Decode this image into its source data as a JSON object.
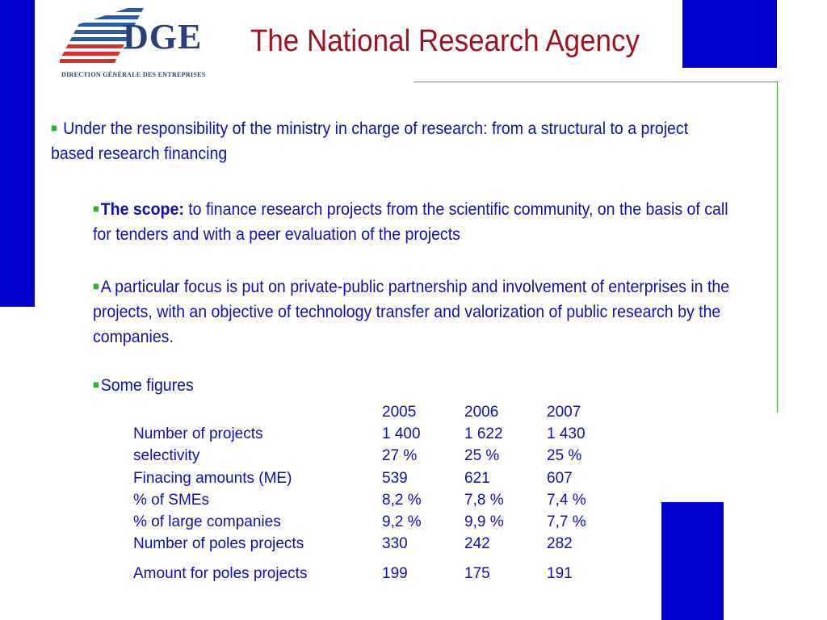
{
  "logo": {
    "name": "DGE",
    "subtitle": "DIRECTION GÉNÉRALE DES ENTREPRISES"
  },
  "title": "The National Research Agency",
  "bullets": {
    "b1": "Under the responsibility of the ministry in charge of research: from a structural to a project based research financing",
    "b2_bold": "The scope:",
    "b2_rest": " to finance research projects from the scientific community, on the basis of call for tenders and with a peer evaluation of the projects",
    "b3": "A  particular focus is put on private-public partnership and involvement of enterprises in the projects, with an objective of technology transfer and valorization of public research by the companies.",
    "b4": "Some figures"
  },
  "figures": {
    "header": [
      "",
      "2005",
      "2006",
      "2007"
    ],
    "rows": [
      [
        "Number of projects",
        "1 400",
        "1 622",
        "1 430"
      ],
      [
        "selectivity",
        "27 %",
        "25 %",
        "25 %"
      ],
      [
        "Finacing amounts (ME)",
        "539",
        "621",
        "607"
      ],
      [
        "% of SMEs",
        "8,2 %",
        "7,8 %",
        "7,4 %"
      ],
      [
        "% of large companies",
        "9,2 %",
        "9,9 %",
        "7,7 %"
      ],
      [
        "Number of poles projects",
        "330",
        "242",
        "282"
      ],
      [
        "Amount for poles projects",
        "199",
        "175",
        "191"
      ]
    ]
  },
  "colors": {
    "blue_bars": "#0000cc",
    "title": "#a01020",
    "text": "#1010b0",
    "bullet": "#22bb22",
    "rule": "#33bb33"
  }
}
